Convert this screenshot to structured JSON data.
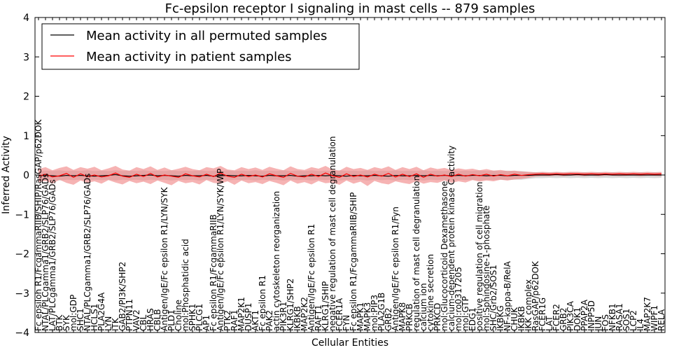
{
  "chart_data": {
    "type": "line",
    "title": "Fc-epsilon receptor I signaling in mast cells -- 879 samples",
    "xlabel": "Cellular Entities",
    "ylabel": "Inferred Activity",
    "ylim": [
      -4,
      4
    ],
    "yticks": [
      -4,
      -3,
      -2,
      -1,
      0,
      1,
      2,
      3,
      4
    ],
    "grid": false,
    "legend_position": "top-left",
    "categories": [
      "Fc epsilon R1/FcgammaRIIB/SHIP/RasGAP/p62DOK",
      "NTAL/PLCgamma1/GRB2/SLP76/GADs",
      "LAT/PLCgamma1/GRB2/SLP76/GADs",
      "BTK",
      "SYK",
      "mol:GDP",
      "SHC1",
      "NTAL/PLCgamma1/GRB2/SLP76/GADs",
      "HCLS1",
      "PLA2G4A",
      "LYN",
      "ITK",
      "GAB2/PI3K/SHP2",
      "PTPN11",
      "VAV2",
      "CBL",
      "HRAS",
      "CBLB",
      "Antigen/IgE/Fc epsilon R1/LYN/SYK",
      "PLD1",
      "Choline",
      "mol:Phosphatidic acid",
      "SPHK1",
      "PLCG1",
      "AP1",
      "Fc epsilon R1/FcgammaRIIB",
      "Antigen/IgE/Fc epsilon R1/LYN/SYK/WIP",
      "PTK2",
      "RAF1",
      "MAP2K1",
      "DUSP1",
      "AKT1",
      "Fc epsilon R1",
      "PAK2",
      "actin cytoskeleton reorganization",
      "PIK3R1",
      "KLRG1/SHP2",
      "IKBKB",
      "MAP2K2",
      "Antigen/IgE/Fc epsilon R1",
      "RAFT1",
      "KLRG1/SHIP",
      "negative regulation of mast cell degranulation",
      "FCER1A",
      "FYN",
      "Fc epsilon R1/FcgammaRIIB/SHIP",
      "MAPK1",
      "MAPK3",
      "mol:PIP3",
      "PLA2G1B",
      "GRB2",
      "Antigen/IgE/Fc epsilon R1/Fyn",
      "MAPK8",
      "PRKCB",
      "regulation of mast cell degranulation",
      "calcium ion",
      "cytokine secretion",
      "PRKCD",
      "mol:Glucocorticoid Dexamethasone",
      "calcium-dependent protein kinase C activity",
      "mol:ro0317205",
      "mol:GTP",
      "EDG1",
      "positive regulation of cell migration",
      "mol:Sphingosine-1-phosphate",
      "SHC/Grb2/SOS1",
      "IKBKG",
      "NF-kappa-B/RelA",
      "CHUK",
      "IKBKB",
      "IKK complex",
      "RasGAP/p62DOK",
      "FCER1G",
      "LAT",
      "FCER2",
      "GRB2",
      "PIK3CA",
      "DOK1",
      "PPAP2A",
      "INPP5D",
      "JUN",
      "FOS",
      "NFKB1",
      "RASA1",
      "SOS1",
      "LCP2",
      "IL4",
      "MAP2K7",
      "WIPF1",
      "RELA"
    ],
    "series": [
      {
        "name": "Mean activity in all permuted samples",
        "color": "#000000",
        "values": [
          -0.02,
          -0.01,
          -0.02,
          -0.03,
          -0.01,
          -0.02,
          -0.01,
          -0.02,
          -0.03,
          -0.02,
          -0.01,
          0.01,
          -0.02,
          -0.03,
          -0.02,
          -0.01,
          0.0,
          -0.02,
          -0.01,
          -0.02,
          -0.03,
          -0.01,
          -0.02,
          -0.02,
          -0.01,
          -0.03,
          -0.02,
          -0.01,
          -0.02,
          -0.02,
          -0.01,
          -0.02,
          -0.03,
          -0.01,
          -0.02,
          -0.02,
          -0.01,
          -0.03,
          -0.02,
          -0.02,
          -0.01,
          -0.02,
          -0.01,
          -0.02,
          -0.03,
          -0.01,
          -0.02,
          -0.02,
          -0.01,
          -0.02,
          -0.03,
          -0.01,
          -0.02,
          -0.02,
          -0.01,
          -0.02,
          -0.01,
          -0.02,
          -0.01,
          -0.02,
          -0.01,
          -0.02,
          -0.01,
          -0.01,
          -0.02,
          -0.01,
          -0.01,
          -0.02,
          -0.01,
          -0.01,
          -0.01,
          0.0,
          0.0,
          0.0,
          0.01,
          0.0,
          0.0,
          0.01,
          0.0,
          0.0,
          0.0,
          0.01,
          0.0,
          0.0,
          0.0,
          0.0,
          0.0,
          0.0,
          0.0,
          0.0
        ]
      },
      {
        "name": "Mean activity in patient samples",
        "color": "#ff0000",
        "values": [
          -0.03,
          0.02,
          -0.05,
          -0.02,
          0.04,
          -0.06,
          0.03,
          -0.04,
          0.0,
          -0.05,
          -0.02,
          0.05,
          -0.03,
          -0.06,
          0.02,
          -0.04,
          0.04,
          -0.05,
          0.0,
          -0.03,
          -0.06,
          0.03,
          -0.02,
          -0.05,
          0.02,
          -0.04,
          0.05,
          -0.03,
          -0.06,
          0.02,
          -0.04,
          0.0,
          -0.05,
          0.03,
          -0.02,
          -0.06,
          0.04,
          -0.03,
          -0.05,
          0.02,
          -0.04,
          0.05,
          -0.02,
          -0.06,
          0.03,
          -0.04,
          0.0,
          -0.05,
          0.02,
          -0.03,
          0.04,
          -0.05,
          0.02,
          -0.04,
          0.03,
          -0.06,
          0.02,
          -0.03,
          0.0,
          -0.04,
          0.02,
          -0.03,
          0.01,
          -0.02,
          0.02,
          -0.03,
          0.01,
          -0.02,
          0.02,
          -0.01,
          0.01,
          0.02,
          0.03,
          0.02,
          0.03,
          0.02,
          0.03,
          0.03,
          0.02,
          0.03,
          0.02,
          0.03,
          0.02,
          0.03,
          0.02,
          0.03,
          0.02,
          0.03,
          0.02,
          0.03
        ]
      }
    ],
    "bands": [
      {
        "name": "permuted-spread",
        "color": "#bbbbbb",
        "lower": [
          -0.12,
          -0.13,
          -0.12,
          -0.14,
          -0.12,
          -0.13,
          -0.12,
          -0.14,
          -0.12,
          -0.13,
          -0.12,
          -0.14,
          -0.12,
          -0.13,
          -0.12,
          -0.14,
          -0.12,
          -0.13,
          -0.12,
          -0.14,
          -0.12,
          -0.13,
          -0.12,
          -0.14,
          -0.12,
          -0.13,
          -0.12,
          -0.14,
          -0.12,
          -0.13,
          -0.12,
          -0.14,
          -0.12,
          -0.13,
          -0.12,
          -0.14,
          -0.12,
          -0.13,
          -0.12,
          -0.14,
          -0.12,
          -0.13,
          -0.12,
          -0.14,
          -0.12,
          -0.13,
          -0.12,
          -0.14,
          -0.12,
          -0.13,
          -0.12,
          -0.14,
          -0.12,
          -0.13,
          -0.12,
          -0.14,
          -0.12,
          -0.13,
          -0.12,
          -0.14,
          -0.12,
          -0.13,
          -0.12,
          -0.14,
          -0.12,
          -0.13,
          -0.12,
          -0.13,
          -0.12,
          -0.12,
          -0.1,
          -0.08,
          -0.08,
          -0.07,
          -0.08,
          -0.07,
          -0.08,
          -0.07,
          -0.08,
          -0.07,
          -0.08,
          -0.07,
          -0.08,
          -0.07,
          -0.08,
          -0.07,
          -0.08,
          -0.07,
          -0.08,
          -0.07
        ],
        "upper": [
          0.1,
          0.11,
          0.1,
          0.12,
          0.1,
          0.11,
          0.1,
          0.12,
          0.1,
          0.11,
          0.1,
          0.12,
          0.1,
          0.11,
          0.1,
          0.12,
          0.1,
          0.11,
          0.1,
          0.12,
          0.1,
          0.11,
          0.1,
          0.12,
          0.1,
          0.11,
          0.1,
          0.12,
          0.1,
          0.11,
          0.1,
          0.12,
          0.1,
          0.11,
          0.1,
          0.12,
          0.1,
          0.11,
          0.1,
          0.12,
          0.1,
          0.11,
          0.1,
          0.12,
          0.1,
          0.11,
          0.1,
          0.12,
          0.1,
          0.11,
          0.1,
          0.12,
          0.1,
          0.11,
          0.1,
          0.12,
          0.1,
          0.11,
          0.1,
          0.12,
          0.1,
          0.11,
          0.1,
          0.12,
          0.1,
          0.11,
          0.1,
          0.11,
          0.1,
          0.1,
          0.08,
          0.07,
          0.07,
          0.06,
          0.07,
          0.06,
          0.07,
          0.06,
          0.07,
          0.06,
          0.07,
          0.06,
          0.07,
          0.06,
          0.07,
          0.06,
          0.07,
          0.06,
          0.07,
          0.06
        ]
      },
      {
        "name": "patient-spread",
        "color": "#f08080",
        "lower": [
          -0.18,
          -0.15,
          -0.22,
          -0.12,
          -0.2,
          -0.25,
          -0.14,
          -0.2,
          -0.16,
          -0.22,
          -0.13,
          -0.19,
          -0.24,
          -0.15,
          -0.21,
          -0.17,
          -0.23,
          -0.14,
          -0.2,
          -0.26,
          -0.15,
          -0.21,
          -0.18,
          -0.24,
          -0.13,
          -0.2,
          -0.22,
          -0.16,
          -0.25,
          -0.14,
          -0.21,
          -0.18,
          -0.23,
          -0.15,
          -0.2,
          -0.26,
          -0.14,
          -0.22,
          -0.18,
          -0.24,
          -0.15,
          -0.21,
          -0.19,
          -0.25,
          -0.14,
          -0.22,
          -0.17,
          -0.28,
          -0.15,
          -0.21,
          -0.24,
          -0.16,
          -0.2,
          -0.23,
          -0.15,
          -0.22,
          -0.18,
          -0.2,
          -0.14,
          -0.2,
          -0.16,
          -0.19,
          -0.13,
          -0.17,
          -0.14,
          -0.16,
          -0.12,
          -0.14,
          -0.11,
          -0.1,
          -0.07,
          -0.04,
          -0.03,
          -0.03,
          -0.02,
          -0.03,
          -0.02,
          -0.02,
          -0.03,
          -0.02,
          -0.03,
          -0.02,
          -0.02,
          -0.03,
          -0.02,
          -0.02,
          -0.03,
          -0.02,
          -0.02,
          -0.03
        ],
        "upper": [
          0.15,
          0.2,
          0.12,
          0.18,
          0.22,
          0.13,
          0.2,
          0.16,
          0.21,
          0.12,
          0.17,
          0.23,
          0.14,
          0.11,
          0.2,
          0.15,
          0.22,
          0.13,
          0.19,
          0.12,
          0.16,
          0.21,
          0.15,
          0.12,
          0.2,
          0.17,
          0.23,
          0.14,
          0.12,
          0.2,
          0.15,
          0.19,
          0.13,
          0.21,
          0.16,
          0.12,
          0.22,
          0.15,
          0.13,
          0.2,
          0.16,
          0.23,
          0.14,
          0.11,
          0.21,
          0.15,
          0.18,
          0.13,
          0.2,
          0.16,
          0.22,
          0.13,
          0.2,
          0.15,
          0.21,
          0.12,
          0.19,
          0.15,
          0.18,
          0.13,
          0.17,
          0.14,
          0.16,
          0.12,
          0.15,
          0.11,
          0.13,
          0.1,
          0.11,
          0.09,
          0.08,
          0.07,
          0.08,
          0.07,
          0.08,
          0.07,
          0.08,
          0.08,
          0.07,
          0.08,
          0.07,
          0.08,
          0.07,
          0.08,
          0.07,
          0.08,
          0.07,
          0.08,
          0.07,
          0.08
        ]
      }
    ]
  }
}
